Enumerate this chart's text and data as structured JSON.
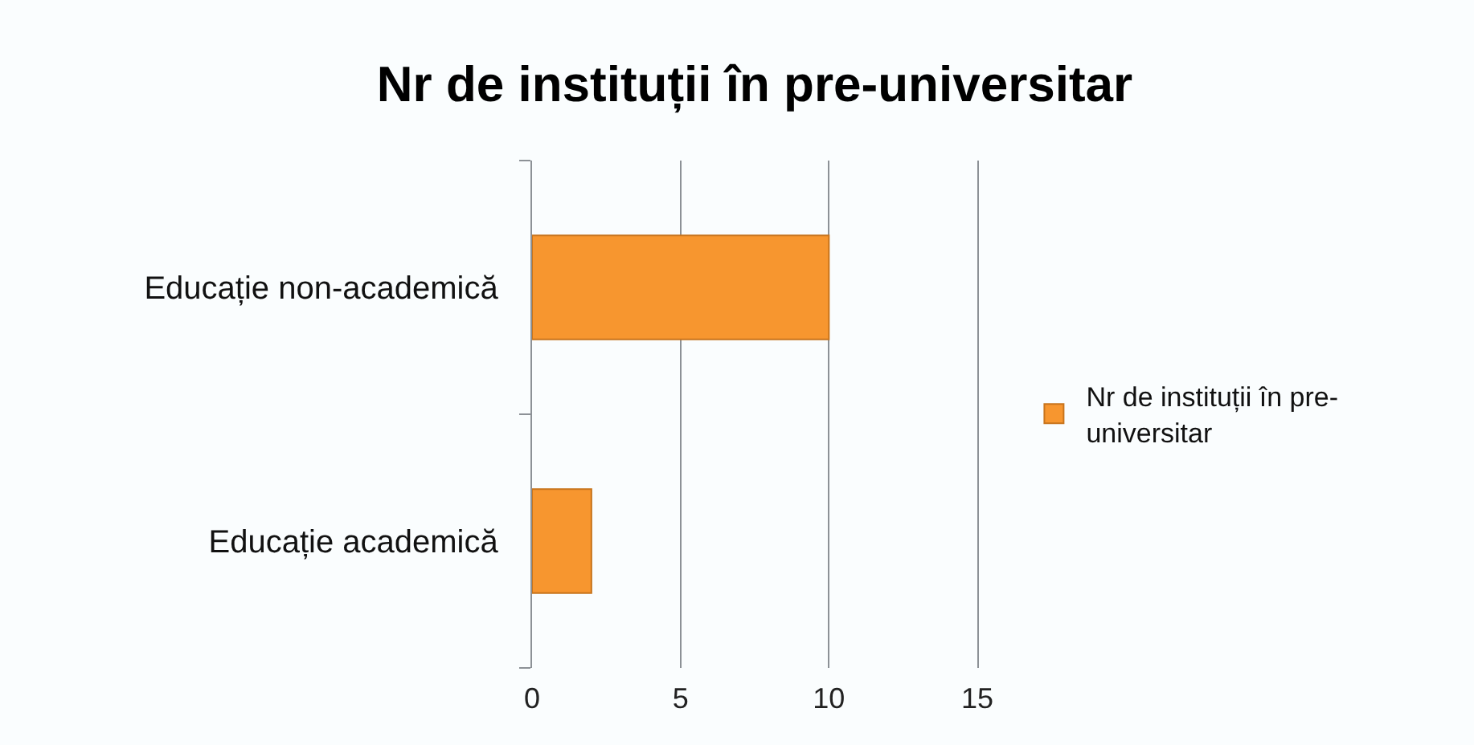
{
  "chart_data": {
    "type": "bar",
    "orientation": "horizontal",
    "title": "Nr de instituții în pre-universitar",
    "categories": [
      "Educație non-academică",
      "Educație academică"
    ],
    "series": [
      {
        "name": "Nr de instituții în pre-universitar",
        "color": "#f7962f",
        "values": [
          10,
          2
        ]
      }
    ],
    "xlim": [
      0,
      15
    ],
    "xticks": [
      0,
      5,
      10,
      15
    ],
    "grid": "x",
    "legend": "right"
  }
}
